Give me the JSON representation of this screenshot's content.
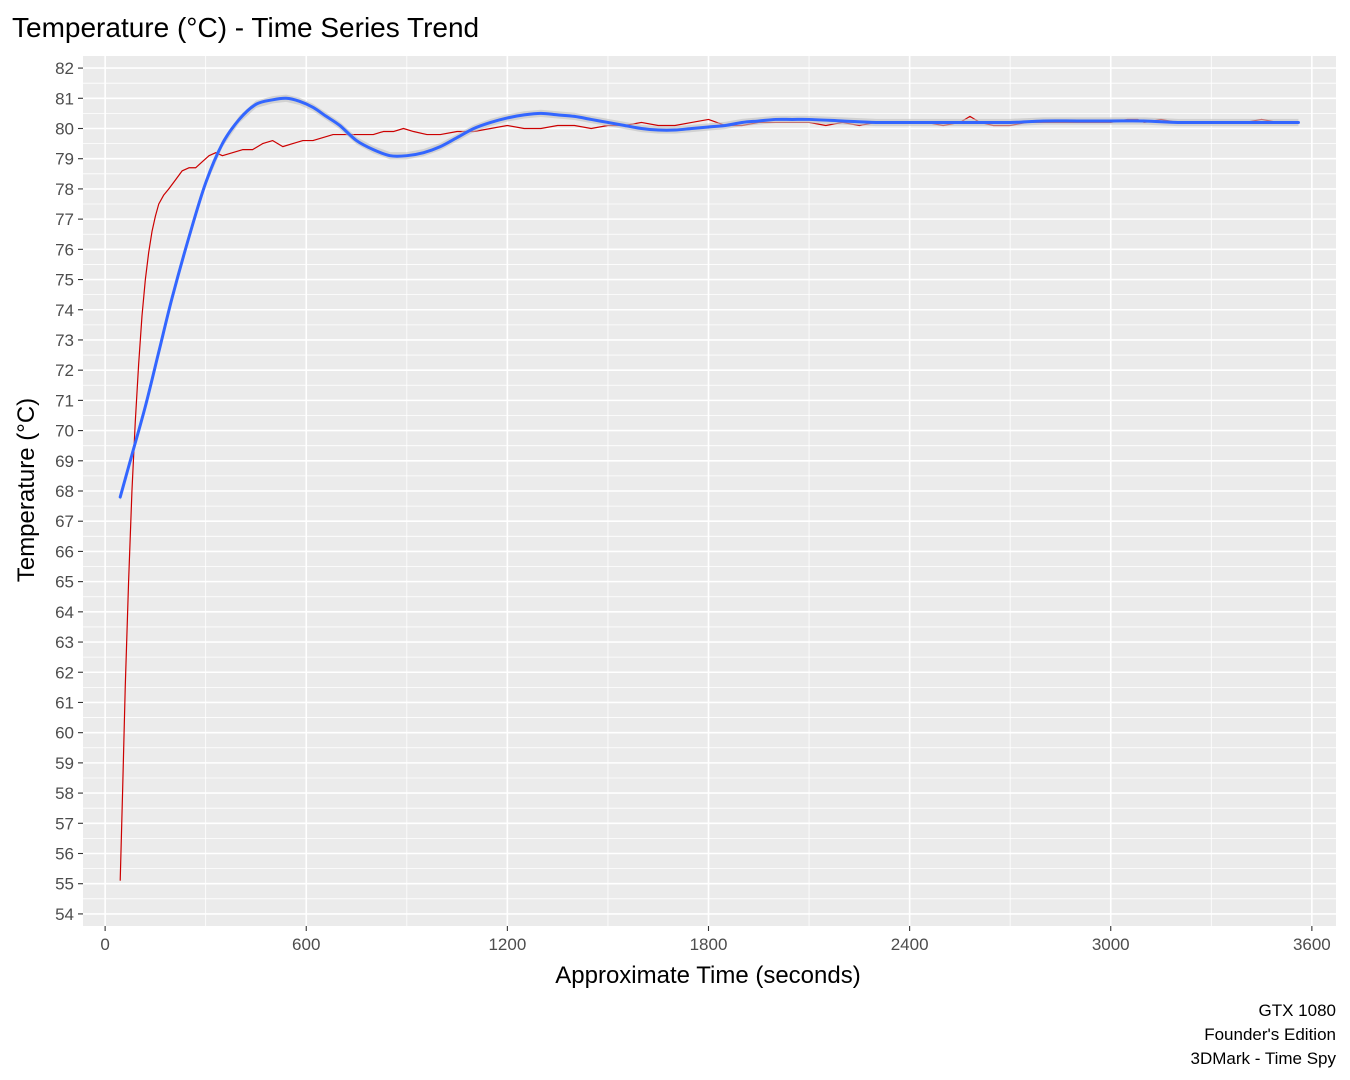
{
  "chart_data": {
    "type": "line",
    "title": "Temperature (°C) - Time Series Trend",
    "xlabel": "Approximate Time (seconds)",
    "ylabel": "Temperature (°C)",
    "xlim": [
      -66,
      3672
    ],
    "ylim": [
      53.6,
      82.4
    ],
    "x_ticks": [
      0,
      600,
      1200,
      1800,
      2400,
      3000,
      3600
    ],
    "x_tick_labels": [
      "0",
      "600",
      "1200",
      "1800",
      "2400",
      "3000",
      "3600"
    ],
    "y_ticks": [
      54,
      55,
      56,
      57,
      58,
      59,
      60,
      61,
      62,
      63,
      64,
      65,
      66,
      67,
      68,
      69,
      70,
      71,
      72,
      73,
      74,
      75,
      76,
      77,
      78,
      79,
      80,
      81,
      82
    ],
    "y_tick_labels": [
      "54",
      "55",
      "56",
      "57",
      "58",
      "59",
      "60",
      "61",
      "62",
      "63",
      "64",
      "65",
      "66",
      "67",
      "68",
      "69",
      "70",
      "71",
      "72",
      "73",
      "74",
      "75",
      "76",
      "77",
      "78",
      "79",
      "80",
      "81",
      "82"
    ],
    "grid": true,
    "panel_background": "#ebebeb",
    "grid_color": "#ffffff",
    "caption": [
      "GTX 1080",
      "Founder's Edition",
      "3DMark - Time Spy"
    ],
    "series": [
      {
        "kind": "raw",
        "color": "#cc0000",
        "x": [
          45,
          52,
          60,
          70,
          80,
          90,
          100,
          110,
          120,
          130,
          140,
          150,
          160,
          175,
          190,
          210,
          230,
          250,
          270,
          290,
          310,
          330,
          350,
          380,
          410,
          440,
          470,
          500,
          530,
          560,
          590,
          620,
          650,
          680,
          710,
          740,
          770,
          800,
          830,
          860,
          890,
          920,
          960,
          1000,
          1050,
          1100,
          1150,
          1200,
          1250,
          1300,
          1350,
          1400,
          1450,
          1500,
          1550,
          1600,
          1650,
          1700,
          1750,
          1800,
          1850,
          1900,
          1950,
          2000,
          2050,
          2100,
          2150,
          2200,
          2250,
          2300,
          2350,
          2400,
          2450,
          2500,
          2550,
          2580,
          2610,
          2650,
          2700,
          2750,
          2800,
          2850,
          2900,
          2950,
          3000,
          3050,
          3080,
          3100,
          3150,
          3200,
          3250,
          3300,
          3350,
          3400,
          3450,
          3500,
          3560
        ],
        "y": [
          55.1,
          58,
          61.5,
          65,
          68,
          70.3,
          72.2,
          73.8,
          75,
          75.9,
          76.6,
          77.1,
          77.5,
          77.8,
          78.0,
          78.3,
          78.6,
          78.7,
          78.7,
          78.9,
          79.1,
          79.2,
          79.1,
          79.2,
          79.3,
          79.3,
          79.5,
          79.6,
          79.4,
          79.5,
          79.6,
          79.6,
          79.7,
          79.8,
          79.8,
          79.8,
          79.8,
          79.8,
          79.9,
          79.9,
          80.0,
          79.9,
          79.8,
          79.8,
          79.9,
          79.9,
          80.0,
          80.1,
          80.0,
          80.0,
          80.1,
          80.1,
          80.0,
          80.1,
          80.1,
          80.2,
          80.1,
          80.1,
          80.2,
          80.3,
          80.1,
          80.1,
          80.2,
          80.2,
          80.2,
          80.2,
          80.1,
          80.2,
          80.1,
          80.2,
          80.2,
          80.2,
          80.2,
          80.1,
          80.2,
          80.4,
          80.2,
          80.1,
          80.1,
          80.2,
          80.2,
          80.2,
          80.2,
          80.2,
          80.2,
          80.3,
          80.3,
          80.2,
          80.3,
          80.2,
          80.2,
          80.2,
          80.2,
          80.2,
          80.3,
          80.2,
          80.2
        ]
      },
      {
        "kind": "smooth",
        "color": "#3366ff",
        "band_color": "#c0c0c0",
        "x": [
          45,
          80,
          120,
          160,
          200,
          250,
          300,
          350,
          400,
          450,
          500,
          540,
          580,
          620,
          660,
          700,
          750,
          800,
          850,
          900,
          950,
          1000,
          1050,
          1100,
          1150,
          1200,
          1250,
          1300,
          1350,
          1400,
          1450,
          1500,
          1550,
          1600,
          1650,
          1700,
          1750,
          1800,
          1850,
          1900,
          1950,
          2000,
          2050,
          2100,
          2200,
          2300,
          2400,
          2500,
          2600,
          2700,
          2800,
          2900,
          3000,
          3100,
          3200,
          3300,
          3400,
          3500,
          3560
        ],
        "y": [
          67.8,
          69.2,
          70.8,
          72.6,
          74.4,
          76.4,
          78.2,
          79.5,
          80.3,
          80.8,
          80.95,
          81.0,
          80.9,
          80.7,
          80.4,
          80.1,
          79.6,
          79.3,
          79.1,
          79.1,
          79.2,
          79.4,
          79.7,
          80.0,
          80.2,
          80.35,
          80.45,
          80.5,
          80.45,
          80.4,
          80.3,
          80.2,
          80.1,
          80.0,
          79.95,
          79.95,
          80.0,
          80.05,
          80.1,
          80.2,
          80.25,
          80.3,
          80.3,
          80.3,
          80.25,
          80.2,
          80.2,
          80.2,
          80.2,
          80.2,
          80.25,
          80.25,
          80.25,
          80.25,
          80.2,
          80.2,
          80.2,
          80.2,
          80.2
        ]
      }
    ]
  }
}
